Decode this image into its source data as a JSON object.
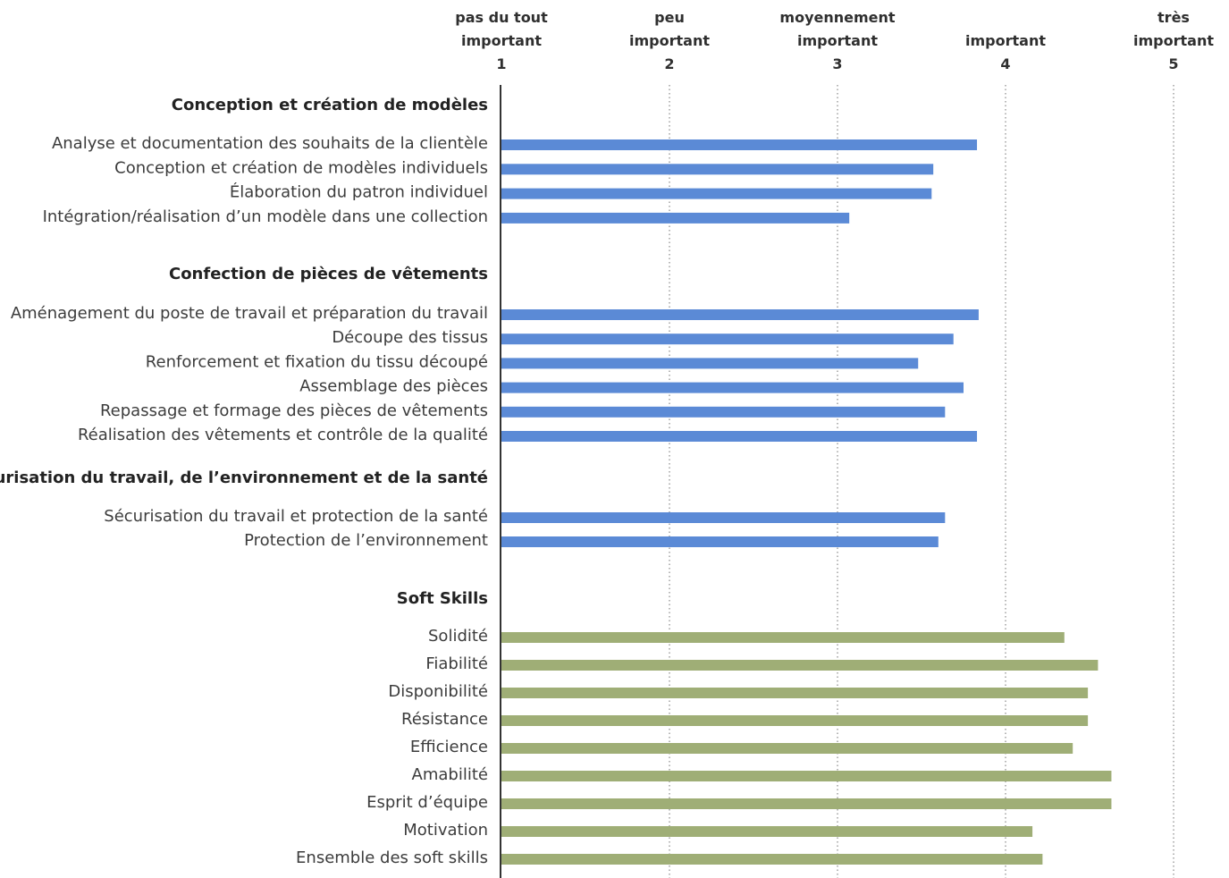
{
  "chart_data": {
    "type": "bar",
    "orientation": "horizontal",
    "xlim": [
      1,
      5
    ],
    "x_ticks": [
      {
        "value": 1,
        "label_lines": [
          "pas du tout",
          "important"
        ],
        "number": "1"
      },
      {
        "value": 2,
        "label_lines": [
          "peu",
          "important"
        ],
        "number": "2"
      },
      {
        "value": 3,
        "label_lines": [
          "moyennement",
          "important"
        ],
        "number": "3"
      },
      {
        "value": 4,
        "label_lines": [
          "important"
        ],
        "number": "4"
      },
      {
        "value": 5,
        "label_lines": [
          "très",
          "important"
        ],
        "number": "5"
      }
    ],
    "grid": "vertical dotted",
    "colors": {
      "technical": "#5b8ad6",
      "soft": "#9fae76",
      "axis": "#333333",
      "grid": "#888888"
    },
    "groups": [
      {
        "title": "Conception et création de modèles",
        "color_key": "technical",
        "items": [
          {
            "label": "Analyse et documentation des souhaits de la clientèle",
            "value": 3.83
          },
          {
            "label": "Conception et création de modèles individuels",
            "value": 3.57
          },
          {
            "label": "Élaboration du patron individuel",
            "value": 3.56
          },
          {
            "label": "Intégration/réalisation d’un modèle dans une collection",
            "value": 3.07
          }
        ]
      },
      {
        "title": "Confection de pièces de vêtements",
        "color_key": "technical",
        "items": [
          {
            "label": "Aménagement du poste de travail et préparation du travail",
            "value": 3.84
          },
          {
            "label": "Découpe des tissus",
            "value": 3.69
          },
          {
            "label": "Renforcement et fixation du tissu découpé",
            "value": 3.48
          },
          {
            "label": "Assemblage des pièces",
            "value": 3.75
          },
          {
            "label": "Repassage et formage des pièces de vêtements",
            "value": 3.64
          },
          {
            "label": "Réalisation des vêtements et contrôle de la qualité",
            "value": 3.83
          }
        ]
      },
      {
        "title": "Sécurisation du travail, de l’environnement et de la santé",
        "color_key": "technical",
        "items": [
          {
            "label": "Sécurisation du travail et protection de la santé",
            "value": 3.64
          },
          {
            "label": "Protection de l’environnement",
            "value": 3.6
          }
        ]
      },
      {
        "title": "Soft Skills",
        "color_key": "soft",
        "items": [
          {
            "label": "Solidité",
            "value": 4.35
          },
          {
            "label": "Fiabilité",
            "value": 4.55
          },
          {
            "label": "Disponibilité",
            "value": 4.49
          },
          {
            "label": "Résistance",
            "value": 4.49
          },
          {
            "label": "Efficience",
            "value": 4.4
          },
          {
            "label": "Amabilité",
            "value": 4.63
          },
          {
            "label": "Esprit d’équipe",
            "value": 4.63
          },
          {
            "label": "Motivation",
            "value": 4.16
          },
          {
            "label": "Ensemble des soft skills",
            "value": 4.22
          }
        ]
      }
    ]
  }
}
